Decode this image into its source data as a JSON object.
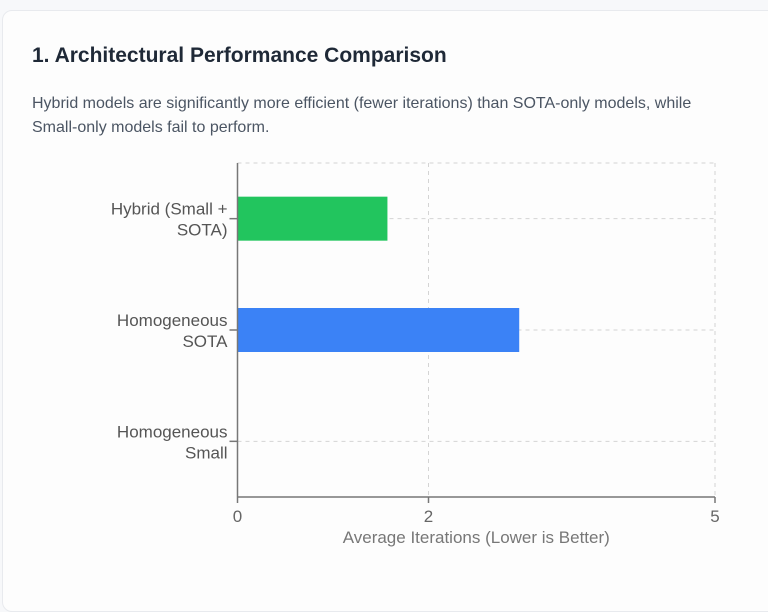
{
  "section": {
    "title": "1. Architectural Performance Comparison",
    "description": "Hybrid models are significantly more efficient (fewer iterations) than SOTA-only models, while Small-only models fail to perform."
  },
  "chart_data": {
    "type": "bar",
    "orientation": "horizontal",
    "categories": [
      [
        "Hybrid (Small +",
        "SOTA)"
      ],
      [
        "Homogeneous",
        "SOTA"
      ],
      [
        "Homogeneous",
        "Small"
      ]
    ],
    "values": [
      1.57,
      2.95,
      0
    ],
    "colors": [
      "#22c55e",
      "#3b82f6",
      "#9ca3af"
    ],
    "xlabel": "Average Iterations (Lower is Better)",
    "xlim": [
      0,
      5
    ],
    "xticks": [
      "0",
      "2",
      "5"
    ],
    "grid": true
  }
}
